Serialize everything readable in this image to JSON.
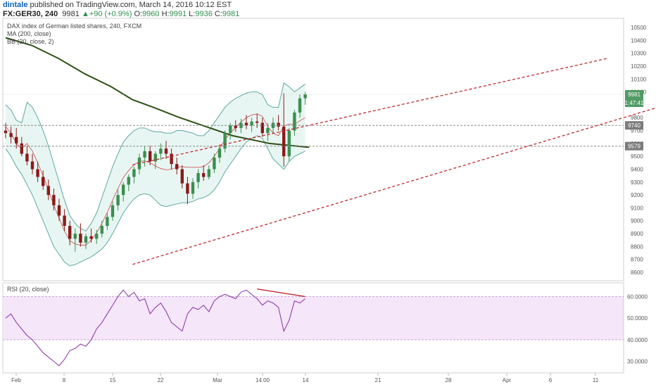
{
  "header": {
    "author": "dintale",
    "published_text": "published on TradingView.com, March 14, 2016 10:12 EST",
    "symbol": "FX:GER30, 240",
    "last": "9981",
    "change_arrow": "▲",
    "change": "+90 (+0.9%)",
    "o_label": "O:",
    "o_value": "9960",
    "h_label": "H:",
    "h_value": "9991",
    "l_label": "L:",
    "l_value": "9936",
    "c_label": "C:",
    "c_value": "9981"
  },
  "legend": {
    "line1": "DAX index of German listed shares, 240, FXCM",
    "line2": "MA (200, close)",
    "line3": "BB (20, close, 2)",
    "rsi": "RSI (20, close)"
  },
  "price_tags": {
    "last": "9981",
    "countdown": "1:47:41",
    "level1": "9740",
    "level2": "9579"
  },
  "colors": {
    "bull": "#3c8f4f",
    "bear": "#8b1a1a",
    "ma": "#2e5016",
    "bb_line": "#5fa8a0",
    "bb_fill": "#e8f6f3",
    "bb_mid": "#c74a4a",
    "channel": "#c0272d",
    "rsi_line": "#8e3fa7",
    "rsi_band": "#f5e6fa",
    "tag_green": "#4f9a63",
    "tag_gray": "#7b7b7b"
  },
  "chart_data": [
    {
      "type": "candlestick",
      "title": "DAX index of German listed shares, 240, FXCM",
      "y_ticks": [
        8600,
        8700,
        8800,
        8900,
        9000,
        9100,
        9200,
        9300,
        9400,
        9500,
        9600,
        9700,
        9800,
        9900,
        10000,
        10100,
        10200,
        10300,
        10400,
        10500
      ],
      "ylim": [
        8540,
        10560
      ],
      "x_ticks": [
        "Feb",
        "8",
        "15",
        "22",
        "Mar",
        "14:00",
        "14",
        "21",
        "28",
        "Apr",
        "6",
        "11"
      ],
      "candles": [
        [
          9700,
          9760,
          9640,
          9680
        ],
        [
          9680,
          9730,
          9600,
          9650
        ],
        [
          9650,
          9720,
          9560,
          9600
        ],
        [
          9600,
          9650,
          9500,
          9520
        ],
        [
          9520,
          9580,
          9430,
          9460
        ],
        [
          9460,
          9520,
          9360,
          9400
        ],
        [
          9400,
          9460,
          9300,
          9340
        ],
        [
          9340,
          9390,
          9240,
          9270
        ],
        [
          9270,
          9320,
          9160,
          9200
        ],
        [
          9200,
          9250,
          9080,
          9120
        ],
        [
          9120,
          9170,
          9000,
          9040
        ],
        [
          9040,
          9090,
          8920,
          8960
        ],
        [
          8960,
          9000,
          8810,
          8860
        ],
        [
          8860,
          8940,
          8760,
          8900
        ],
        [
          8900,
          8980,
          8800,
          8830
        ],
        [
          8830,
          8900,
          8780,
          8880
        ],
        [
          8880,
          8940,
          8830,
          8860
        ],
        [
          8860,
          8930,
          8820,
          8900
        ],
        [
          8900,
          9000,
          8870,
          8960
        ],
        [
          8960,
          9060,
          8930,
          9030
        ],
        [
          9030,
          9150,
          9000,
          9120
        ],
        [
          9120,
          9240,
          9080,
          9200
        ],
        [
          9200,
          9300,
          9150,
          9280
        ],
        [
          9280,
          9360,
          9230,
          9340
        ],
        [
          9340,
          9420,
          9290,
          9400
        ],
        [
          9400,
          9520,
          9360,
          9490
        ],
        [
          9490,
          9580,
          9420,
          9540
        ],
        [
          9540,
          9580,
          9430,
          9460
        ],
        [
          9460,
          9540,
          9400,
          9520
        ],
        [
          9520,
          9600,
          9470,
          9560
        ],
        [
          9560,
          9620,
          9480,
          9520
        ],
        [
          9520,
          9560,
          9400,
          9440
        ],
        [
          9440,
          9490,
          9360,
          9400
        ],
        [
          9400,
          9430,
          9250,
          9290
        ],
        [
          9290,
          9340,
          9130,
          9210
        ],
        [
          9210,
          9330,
          9170,
          9300
        ],
        [
          9300,
          9400,
          9250,
          9370
        ],
        [
          9370,
          9430,
          9310,
          9340
        ],
        [
          9340,
          9430,
          9320,
          9400
        ],
        [
          9400,
          9520,
          9370,
          9490
        ],
        [
          9490,
          9590,
          9450,
          9560
        ],
        [
          9560,
          9700,
          9530,
          9680
        ],
        [
          9680,
          9760,
          9630,
          9740
        ],
        [
          9740,
          9780,
          9690,
          9720
        ],
        [
          9720,
          9790,
          9680,
          9760
        ],
        [
          9760,
          9820,
          9710,
          9740
        ],
        [
          9740,
          9800,
          9690,
          9770
        ],
        [
          9770,
          9830,
          9720,
          9760
        ],
        [
          9760,
          9800,
          9650,
          9680
        ],
        [
          9680,
          9760,
          9620,
          9720
        ],
        [
          9720,
          9800,
          9680,
          9760
        ],
        [
          9760,
          9820,
          9700,
          9730
        ],
        [
          9730,
          9990,
          9420,
          9500
        ],
        [
          9500,
          9720,
          9460,
          9700
        ],
        [
          9700,
          9860,
          9660,
          9840
        ],
        [
          9840,
          9980,
          9800,
          9950
        ],
        [
          9950,
          10000,
          9900,
          9981
        ]
      ],
      "ma200_points": [
        [
          0,
          10420
        ],
        [
          10,
          10360
        ],
        [
          20,
          10260
        ],
        [
          30,
          10140
        ],
        [
          40,
          10040
        ],
        [
          48,
          9940
        ],
        [
          56,
          9880
        ],
        [
          66,
          9800
        ],
        [
          76,
          9730
        ],
        [
          86,
          9660
        ],
        [
          100,
          9600
        ],
        [
          115,
          9570
        ]
      ],
      "bb_upper": [
        9900,
        9860,
        9780,
        9760,
        9920,
        9880,
        9800,
        9700,
        9580,
        9440,
        9300,
        9160,
        9040,
        8980,
        8940,
        8920,
        8980,
        9060,
        9180,
        9300,
        9420,
        9520,
        9610,
        9660,
        9700,
        9720,
        9720,
        9700,
        9690,
        9690,
        9680,
        9680,
        9700,
        9700,
        9690,
        9680,
        9660,
        9660,
        9700,
        9760,
        9820,
        9880,
        9920,
        9950,
        9970,
        9990,
        10000,
        10000,
        9980,
        9900,
        9880,
        9880,
        10070,
        10040,
        10000,
        10030,
        10060
      ],
      "bb_lower": [
        9560,
        9500,
        9420,
        9360,
        9280,
        9200,
        9100,
        9000,
        8900,
        8800,
        8740,
        8680,
        8650,
        8660,
        8680,
        8700,
        8720,
        8750,
        8780,
        8830,
        8900,
        8980,
        9060,
        9120,
        9170,
        9200,
        9210,
        9200,
        9160,
        9120,
        9110,
        9120,
        9130,
        9140,
        9140,
        9150,
        9170,
        9180,
        9200,
        9240,
        9300,
        9380,
        9440,
        9500,
        9560,
        9610,
        9640,
        9660,
        9640,
        9560,
        9480,
        9440,
        9400,
        9460,
        9500,
        9520,
        9540
      ],
      "channel_upper": [
        [
          54,
          9715
        ],
        [
          152,
          10628
        ]
      ],
      "channel_lower": [
        [
          54,
          9037
        ],
        [
          170,
          10476
        ]
      ],
      "levels": [
        9740,
        9579
      ],
      "last_price": 9981
    },
    {
      "type": "line",
      "title": "RSI (20, close)",
      "y_ticks": [
        30,
        40,
        50,
        60
      ],
      "ylim": [
        25,
        66
      ],
      "bands": [
        40,
        60
      ],
      "values": [
        50,
        52,
        48,
        45,
        42,
        40,
        37,
        34,
        32,
        30,
        28,
        31,
        35,
        36,
        38,
        37,
        40,
        45,
        48,
        52,
        56,
        60,
        63,
        60,
        62,
        58,
        59,
        52,
        55,
        57,
        53,
        48,
        46,
        44,
        52,
        55,
        54,
        56,
        53,
        58,
        60,
        61,
        60,
        59,
        62,
        63,
        61,
        59,
        56,
        58,
        57,
        55,
        44,
        49,
        58,
        57,
        59
      ],
      "divergence_line": [
        [
          47,
          63.5
        ],
        [
          56,
          60
        ]
      ]
    }
  ]
}
